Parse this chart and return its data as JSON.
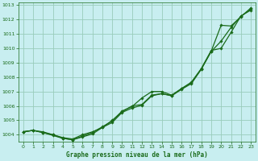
{
  "bg_color": "#c8eef0",
  "grid_color": "#99ccbb",
  "line_color": "#1a6b1a",
  "text_color": "#1a6b1a",
  "xlabel": "Graphe pression niveau de la mer (hPa)",
  "xlim": [
    -0.5,
    23.5
  ],
  "ylim": [
    1003.5,
    1013.2
  ],
  "yticks": [
    1004,
    1005,
    1006,
    1007,
    1008,
    1009,
    1010,
    1011,
    1012,
    1013
  ],
  "xticks": [
    0,
    1,
    2,
    3,
    4,
    5,
    6,
    7,
    8,
    9,
    10,
    11,
    12,
    13,
    14,
    15,
    16,
    17,
    18,
    19,
    20,
    21,
    22,
    23
  ],
  "series1_x": [
    0,
    1,
    2,
    3,
    4,
    5,
    6,
    7,
    8,
    9,
    10,
    11,
    12,
    13,
    14,
    15,
    16,
    17,
    18,
    19,
    20,
    21,
    22,
    23
  ],
  "series1_y": [
    1004.2,
    1004.3,
    1004.15,
    1004.0,
    1003.75,
    1003.65,
    1003.85,
    1004.05,
    1004.5,
    1004.85,
    1005.55,
    1005.85,
    1006.05,
    1006.7,
    1006.85,
    1006.7,
    1007.15,
    1007.55,
    1008.55,
    1009.8,
    1011.6,
    1011.55,
    1012.2,
    1012.8
  ],
  "series2_x": [
    0,
    1,
    2,
    3,
    4,
    5,
    6,
    7,
    8,
    9,
    10,
    11,
    12,
    13,
    14,
    15,
    16,
    17,
    18,
    19,
    20,
    21,
    22,
    23
  ],
  "series2_y": [
    1004.2,
    1004.3,
    1004.15,
    1003.95,
    1003.75,
    1003.65,
    1003.9,
    1004.15,
    1004.55,
    1004.95,
    1005.65,
    1005.95,
    1006.55,
    1007.0,
    1007.0,
    1006.75,
    1007.2,
    1007.65,
    1008.6,
    1009.85,
    1010.0,
    1011.1,
    1012.25,
    1012.65
  ],
  "series3_x": [
    0,
    1,
    2,
    3,
    4,
    5,
    6,
    7,
    8,
    9,
    10,
    11,
    12,
    13,
    14,
    15,
    16,
    17,
    18,
    19,
    20,
    21,
    22,
    23
  ],
  "series3_y": [
    1004.2,
    1004.3,
    1004.2,
    1004.0,
    1003.8,
    1003.7,
    1004.0,
    1004.2,
    1004.5,
    1005.0,
    1005.6,
    1006.0,
    1006.1,
    1006.75,
    1006.85,
    1006.72,
    1007.2,
    1007.62,
    1008.56,
    1009.78,
    1010.5,
    1011.45,
    1012.22,
    1012.72
  ]
}
